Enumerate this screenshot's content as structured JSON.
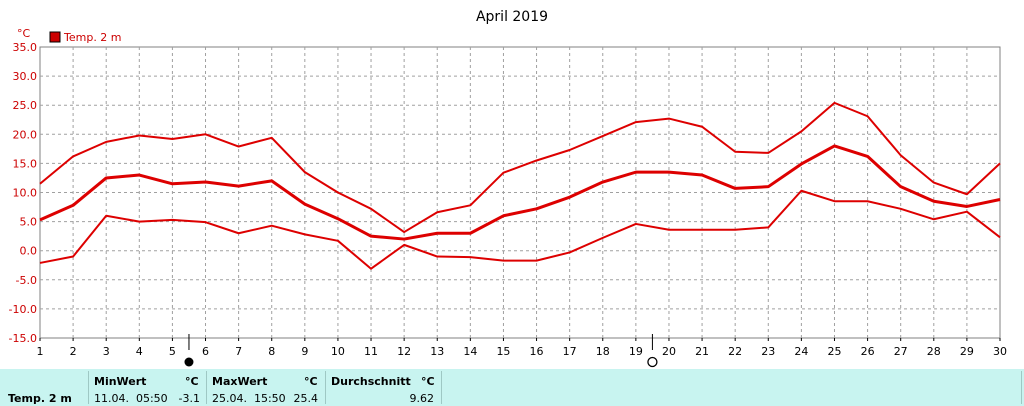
{
  "chart_data": {
    "type": "line",
    "title": "April 2019",
    "unit_label": "°C",
    "legend": {
      "label": "Temp. 2 m",
      "color": "#cc0000"
    },
    "xlim": [
      1,
      30
    ],
    "ylim": [
      -15,
      35
    ],
    "x_ticks": [
      1,
      2,
      3,
      4,
      5,
      6,
      7,
      8,
      9,
      10,
      11,
      12,
      13,
      14,
      15,
      16,
      17,
      18,
      19,
      20,
      21,
      22,
      23,
      24,
      25,
      26,
      27,
      28,
      29,
      30
    ],
    "y_ticks": [
      "-15.0",
      "-10.0",
      "-5.0",
      "0.0",
      "5.0",
      "10.0",
      "15.0",
      "20.0",
      "25.0",
      "30.0",
      "35.0"
    ],
    "x": [
      1,
      2,
      3,
      4,
      5,
      6,
      7,
      8,
      9,
      10,
      11,
      12,
      13,
      14,
      15,
      16,
      17,
      18,
      19,
      20,
      21,
      22,
      23,
      24,
      25,
      26,
      27,
      28,
      29,
      30
    ],
    "series": [
      {
        "role": "max",
        "values": [
          11.5,
          16.2,
          18.7,
          19.8,
          19.2,
          20.0,
          17.9,
          19.4,
          13.5,
          10.0,
          7.2,
          3.2,
          6.6,
          7.8,
          13.4,
          15.5,
          17.3,
          19.7,
          22.1,
          22.7,
          21.3,
          17.0,
          16.8,
          20.5,
          25.4,
          23.1,
          16.4,
          11.7,
          9.7,
          15.0
        ]
      },
      {
        "role": "mean",
        "values": [
          5.3,
          7.8,
          12.5,
          13.0,
          11.5,
          11.8,
          11.1,
          12.0,
          8.0,
          5.5,
          2.5,
          2.0,
          3.0,
          3.0,
          6.0,
          7.2,
          9.2,
          11.8,
          13.5,
          13.5,
          13.0,
          10.7,
          11.0,
          14.9,
          18.0,
          16.2,
          11.0,
          8.5,
          7.6,
          8.8
        ]
      },
      {
        "role": "min",
        "values": [
          -2.1,
          -1.0,
          6.0,
          5.0,
          5.3,
          4.9,
          3.0,
          4.3,
          2.8,
          1.7,
          -3.1,
          1.0,
          -1.0,
          -1.1,
          -1.7,
          -1.7,
          -0.3,
          2.2,
          4.6,
          3.6,
          3.6,
          3.6,
          4.0,
          10.3,
          8.5,
          8.5,
          7.2,
          5.4,
          6.7,
          2.3
        ]
      }
    ],
    "grid": true,
    "markers": [
      {
        "x": 5.5,
        "symbol": "full-moon",
        "glyph": "●"
      },
      {
        "x": 19.5,
        "symbol": "new-moon",
        "glyph": "○"
      }
    ]
  },
  "footer": {
    "series_label": "Temp. 2 m",
    "min": {
      "label": "MinWert",
      "unit": "°C",
      "when": "11.04.  05:50",
      "value": "-3.1"
    },
    "max": {
      "label": "MaxWert",
      "unit": "°C",
      "when": "25.04.  15:50",
      "value": "25.4"
    },
    "avg": {
      "label": "Durchschnitt",
      "unit": "°C",
      "value": "9.62"
    }
  },
  "colors": {
    "line": "#dd0000",
    "footer_bg": "#c8f4f0",
    "grid": "#a0a0a0"
  }
}
